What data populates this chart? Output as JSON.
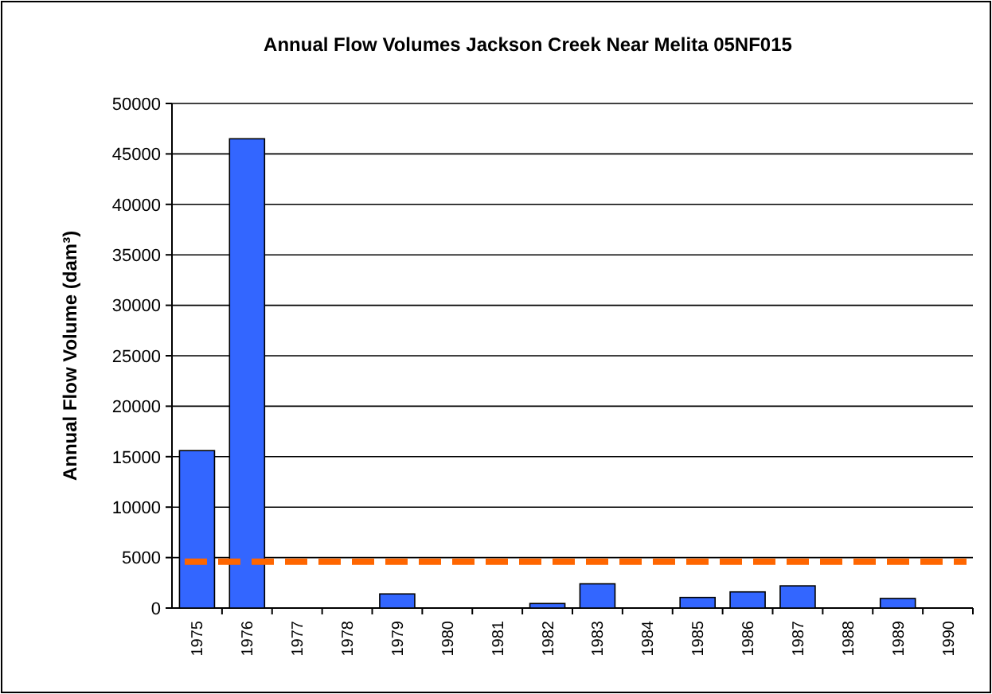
{
  "chart_data": {
    "type": "bar",
    "title": "Annual Flow Volumes Jackson Creek Near Melita 05NF015",
    "ylabel": "Annual Flow Volume (dam³)",
    "categories": [
      "1975",
      "1976",
      "1977",
      "1978",
      "1979",
      "1980",
      "1981",
      "1982",
      "1983",
      "1984",
      "1985",
      "1986",
      "1987",
      "1988",
      "1989",
      "1990"
    ],
    "values": [
      15600,
      46500,
      null,
      null,
      1400,
      null,
      null,
      450,
      2400,
      null,
      1050,
      1600,
      2200,
      null,
      950,
      null
    ],
    "color": "#3366ff",
    "ylim": [
      0,
      50000
    ],
    "yticks": [
      0,
      5000,
      10000,
      15000,
      20000,
      25000,
      30000,
      35000,
      40000,
      45000,
      50000
    ],
    "grid": "y",
    "ref_lines": [
      {
        "axis": "y",
        "value": 4600,
        "color": "#ff6600",
        "line_style": "dashed"
      }
    ]
  }
}
